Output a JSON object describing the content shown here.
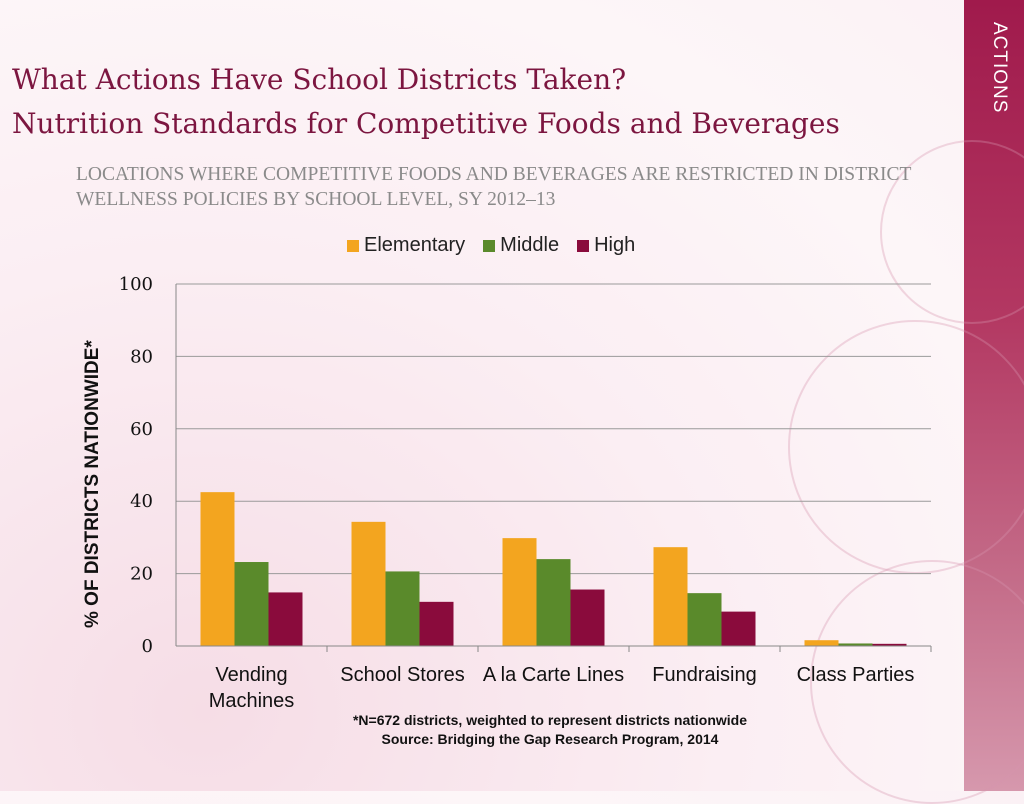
{
  "side_tab": "ACTIONS",
  "title_line1": "What Actions Have School Districts Taken?",
  "title_line2": "Nutrition Standards for Competitive Foods and Beverages",
  "colors": {
    "elementary": "#f3a51f",
    "middle": "#5a8a2b",
    "high": "#8a0b3c",
    "title": "#7c1640",
    "band": "#a01a4c"
  },
  "chart_data": {
    "type": "bar",
    "title": "LOCATIONS WHERE COMPETITIVE FOODS AND BEVERAGES ARE RESTRICTED IN DISTRICT WELLNESS POLICIES BY SCHOOL LEVEL, SY 2012–13",
    "xlabel": "",
    "ylabel": "% OF DISTRICTS NATIONWIDE*",
    "ylim": [
      0,
      100
    ],
    "yticks": [
      "0",
      "20",
      "40",
      "60",
      "80",
      "100"
    ],
    "grid": true,
    "legend_position": "top",
    "categories": [
      {
        "line1": "Vending",
        "line2": "Machines"
      },
      {
        "line1": "School Stores",
        "line2": ""
      },
      {
        "line1": "A la Carte Lines",
        "line2": ""
      },
      {
        "line1": "Fundraising",
        "line2": ""
      },
      {
        "line1": "Class Parties",
        "line2": ""
      }
    ],
    "series": [
      {
        "name": "Elementary",
        "values": [
          42.5,
          34.3,
          29.8,
          27.3,
          1.6
        ]
      },
      {
        "name": "Middle",
        "values": [
          23.2,
          20.6,
          24.0,
          14.6,
          0.7
        ]
      },
      {
        "name": "High",
        "values": [
          14.8,
          12.2,
          15.6,
          9.5,
          0.6
        ]
      }
    ]
  },
  "footnote_line1": "*N=672 districts, weighted to represent districts nationwide",
  "footnote_line2": "Source: Bridging the Gap Research Program, 2014"
}
